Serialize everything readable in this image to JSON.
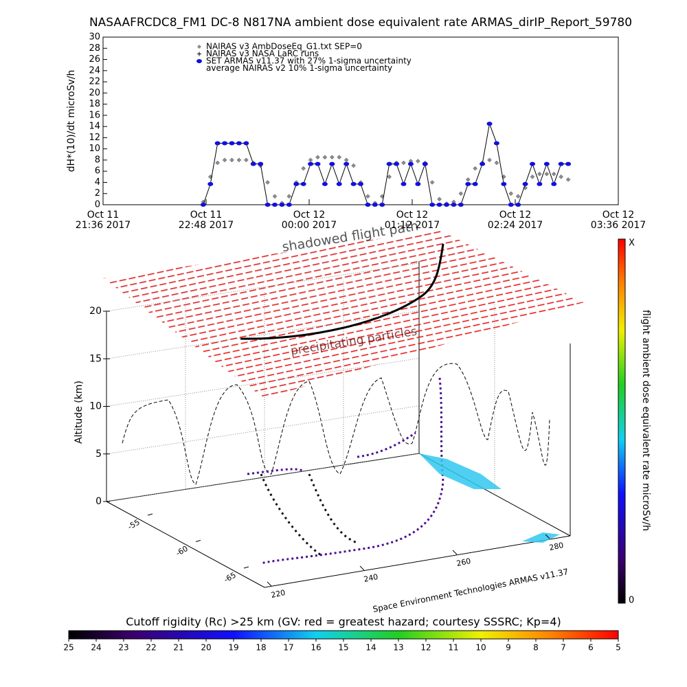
{
  "chart_data": [
    {
      "type": "line",
      "title": "NASAAFRCDC8_FM1 DC-8   N817NA ambient dose equivalent rate ARMAS_dirIP_Report_59780",
      "ylabel": "dH*(10)/dt microSv/h",
      "x": [
        "2017-10-11T22:46",
        "2017-10-11T22:51",
        "2017-10-11T22:56",
        "2017-10-11T23:01",
        "2017-10-11T23:06",
        "2017-10-11T23:11",
        "2017-10-11T23:16",
        "2017-10-11T23:21",
        "2017-10-11T23:26",
        "2017-10-11T23:31",
        "2017-10-11T23:36",
        "2017-10-11T23:41",
        "2017-10-11T23:46",
        "2017-10-11T23:51",
        "2017-10-11T23:56",
        "2017-10-12T00:01",
        "2017-10-12T00:06",
        "2017-10-12T00:11",
        "2017-10-12T00:16",
        "2017-10-12T00:21",
        "2017-10-12T00:26",
        "2017-10-12T00:31",
        "2017-10-12T00:36",
        "2017-10-12T00:41",
        "2017-10-12T00:46",
        "2017-10-12T00:51",
        "2017-10-12T00:56",
        "2017-10-12T01:01",
        "2017-10-12T01:06",
        "2017-10-12T01:11",
        "2017-10-12T01:16",
        "2017-10-12T01:21",
        "2017-10-12T01:26",
        "2017-10-12T01:31",
        "2017-10-12T01:36",
        "2017-10-12T01:41",
        "2017-10-12T01:46",
        "2017-10-12T01:51",
        "2017-10-12T01:56",
        "2017-10-12T02:01",
        "2017-10-12T02:06",
        "2017-10-12T02:11",
        "2017-10-12T02:16",
        "2017-10-12T02:21",
        "2017-10-12T02:26",
        "2017-10-12T02:31",
        "2017-10-12T02:36",
        "2017-10-12T02:41",
        "2017-10-12T02:46",
        "2017-10-12T02:51",
        "2017-10-12T02:56",
        "2017-10-12T03:01"
      ],
      "series": [
        {
          "name": "NAIRAS v3 AmbDoseEq_G1.txt SEP=0",
          "color": "#8c8c8c",
          "marker": "diamond",
          "values": [
            0.5,
            5,
            7.5,
            8,
            8,
            8,
            8,
            7.5,
            7,
            4,
            1.5,
            0.3,
            1.5,
            4,
            6.5,
            8,
            8.5,
            8.5,
            8.5,
            8.5,
            8,
            7,
            4,
            1.5,
            0.3,
            1.5,
            5,
            7.5,
            7.5,
            7.8,
            7.8,
            7.5,
            4,
            1,
            0.2,
            0.5,
            2,
            4.5,
            6.5,
            7.5,
            8,
            7.5,
            5,
            2,
            1.5,
            3,
            5,
            5.5,
            5.5,
            5.5,
            5,
            4.5
          ]
        },
        {
          "name": "SET ARMAS v11.37 with 27% 1-sigma uncertainty",
          "color": "#1010e0",
          "marker": "dot",
          "values": [
            0,
            3.7,
            11,
            11,
            11,
            11,
            11,
            7.3,
            7.3,
            0,
            0,
            0,
            0,
            3.7,
            3.7,
            7.3,
            7.3,
            3.7,
            7.3,
            3.7,
            7.3,
            3.7,
            3.7,
            0,
            0,
            0,
            7.3,
            7.3,
            3.7,
            7.3,
            3.7,
            7.3,
            0,
            0,
            0,
            0,
            0,
            3.7,
            3.7,
            7.3,
            14.5,
            11,
            3.7,
            0,
            0,
            3.7,
            7.3,
            3.7,
            7.3,
            3.7,
            7.3,
            7.3
          ]
        }
      ],
      "legend_notes": [
        "NAIRAS v3 NASA LaRC runs",
        "average NAIRAS v2 10% 1-sigma uncertainty"
      ],
      "xlim": [
        "2017-10-11T21:36",
        "2017-10-12T03:36"
      ],
      "xticks": [
        {
          "value": "2017-10-11T21:36",
          "label": "Oct 11\n21:36 2017"
        },
        {
          "value": "2017-10-11T22:48",
          "label": "Oct 11\n22:48 2017"
        },
        {
          "value": "2017-10-12T00:00",
          "label": "Oct 12\n00:00 2017"
        },
        {
          "value": "2017-10-12T01:12",
          "label": "Oct 12\n01:12 2017"
        },
        {
          "value": "2017-10-12T02:24",
          "label": "Oct 12\n02:24 2017"
        },
        {
          "value": "2017-10-12T03:36",
          "label": "Oct 12\n03:36 2017"
        }
      ],
      "ylim": [
        0,
        30
      ],
      "yticks": [
        0,
        2,
        4,
        6,
        8,
        10,
        12,
        14,
        16,
        18,
        20,
        22,
        24,
        26,
        28,
        30
      ]
    },
    {
      "type": "surface3d",
      "zlabel": "Altitude (km)",
      "zlim": [
        0,
        20
      ],
      "zticks": [
        0,
        5,
        10,
        15,
        20
      ],
      "xlim": [
        220,
        280
      ],
      "xticks": [
        220,
        240,
        260,
        280
      ],
      "ylim": [
        -55,
        -65
      ],
      "yticks": [
        -55,
        -60,
        -65
      ],
      "annotations": [
        "shadowed flight path",
        "precipitating particles",
        "Space Environment Technologies ARMAS v11.37"
      ],
      "rate_colorbar": {
        "label": "flight ambient dose equivalent rate microSv/h",
        "ticks": [
          "X",
          "0"
        ]
      },
      "rigidity_colorbar": {
        "title": "Cutoff rigidity (Rc) >25 km (GV: red = greatest hazard; courtesy SSSRC; Kp=4)",
        "lim": [
          25,
          5
        ],
        "ticks": [
          25,
          24,
          23,
          22,
          21,
          20,
          19,
          18,
          17,
          16,
          15,
          14,
          13,
          12,
          11,
          10,
          9,
          8,
          7,
          6,
          5
        ]
      }
    }
  ]
}
